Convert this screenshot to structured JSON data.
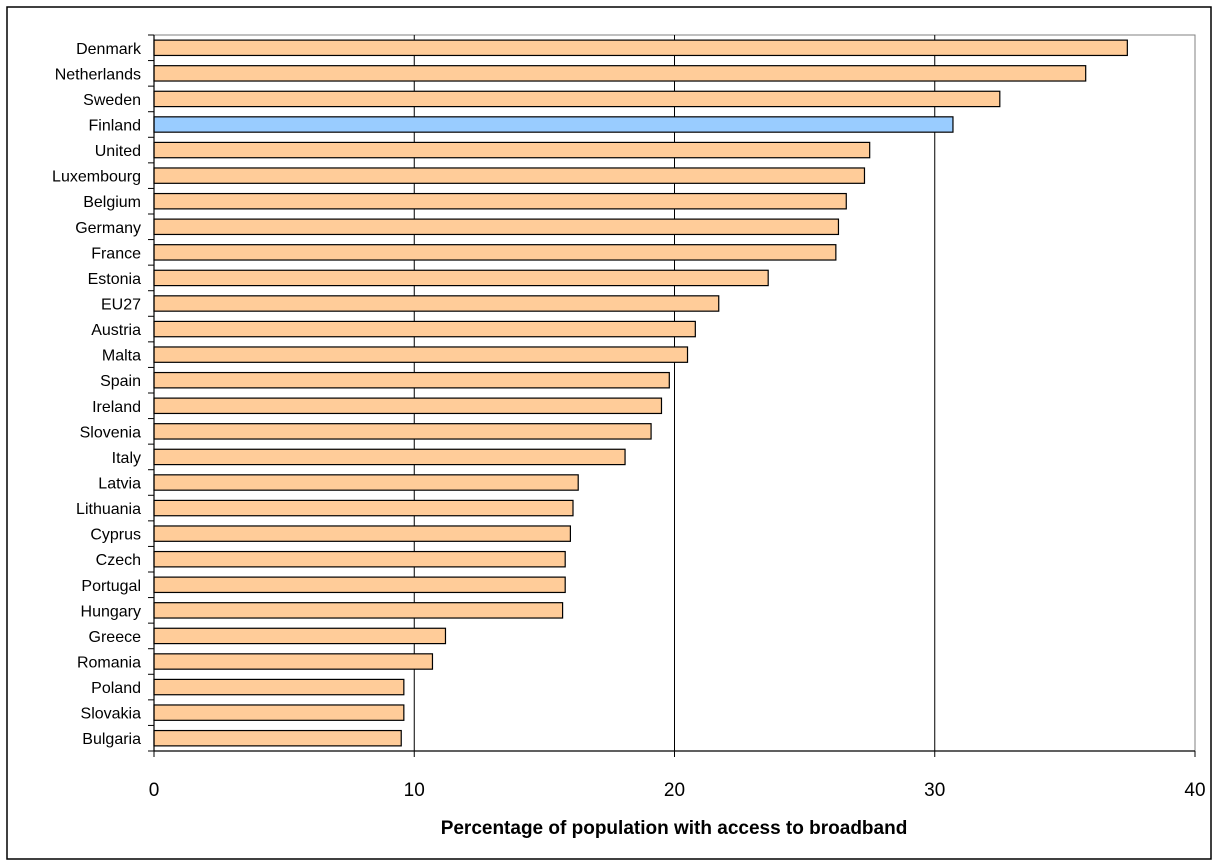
{
  "chart_data": {
    "type": "bar",
    "orientation": "horizontal",
    "title": "",
    "xlabel": "Percentage of population with access to broadband",
    "ylabel": "",
    "xlim": [
      0,
      40
    ],
    "xticks": [
      0,
      10,
      20,
      30,
      40
    ],
    "grid": "vertical",
    "legend": "none",
    "bar_color": "#FFCC99",
    "highlight_color": "#99CCFF",
    "highlight_category": "Finland",
    "categories": [
      "Denmark",
      "Netherlands",
      "Sweden",
      "Finland",
      "United",
      "Luxembourg",
      "Belgium",
      "Germany",
      "France",
      "Estonia",
      "EU27",
      "Austria",
      "Malta",
      "Spain",
      "Ireland",
      "Slovenia",
      "Italy",
      "Latvia",
      "Lithuania",
      "Cyprus",
      "Czech",
      "Portugal",
      "Hungary",
      "Greece",
      "Romania",
      "Poland",
      "Slovakia",
      "Bulgaria"
    ],
    "values": [
      37.4,
      35.8,
      32.5,
      30.7,
      27.5,
      27.3,
      26.6,
      26.3,
      26.2,
      23.6,
      21.7,
      20.8,
      20.5,
      19.8,
      19.5,
      19.1,
      18.1,
      16.3,
      16.1,
      16.0,
      15.8,
      15.8,
      15.7,
      11.2,
      10.7,
      9.6,
      9.6,
      9.5
    ]
  }
}
